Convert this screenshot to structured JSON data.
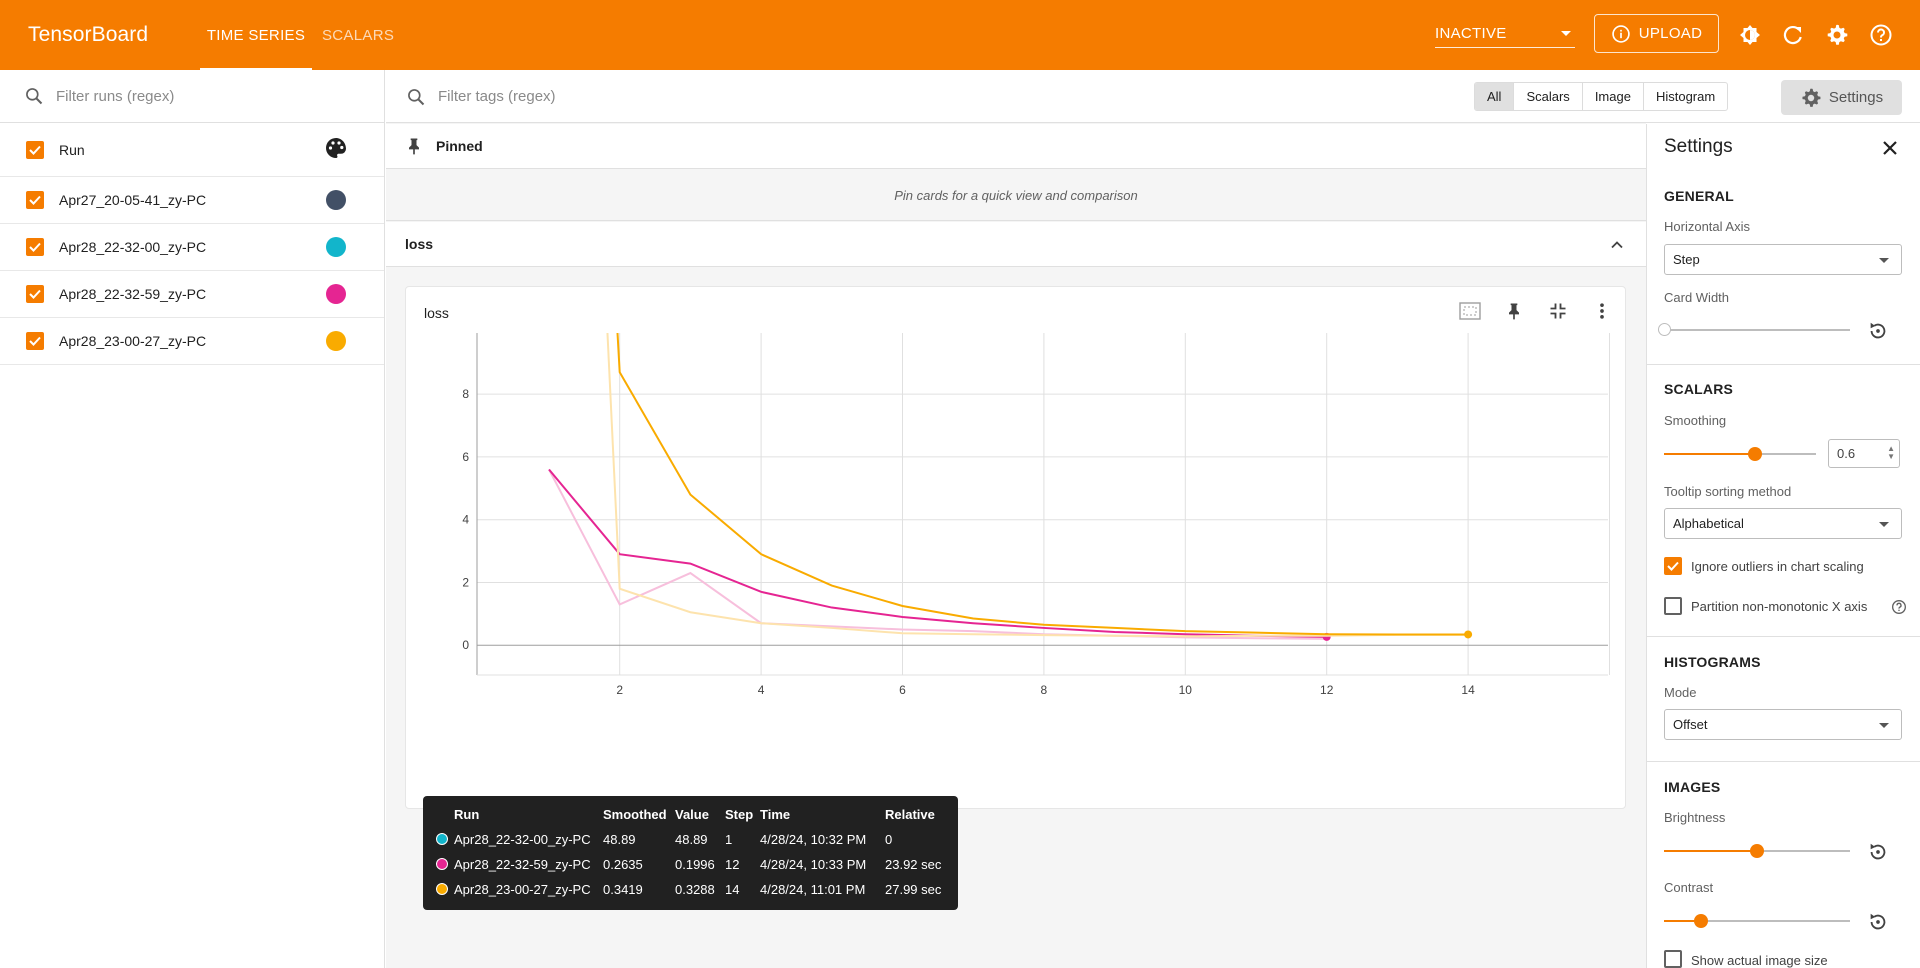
{
  "header": {
    "brand": "TensorBoard",
    "tabs": [
      {
        "label": "TIME SERIES"
      },
      {
        "label": "SCALARS"
      }
    ],
    "status_select": "INACTIVE",
    "upload_label": "UPLOAD"
  },
  "runs_panel": {
    "filter_placeholder": "Filter runs (regex)",
    "header_label": "Run",
    "runs": [
      {
        "name": "Apr27_20-05-41_zy-PC",
        "color": "#425066"
      },
      {
        "name": "Apr28_22-32-00_zy-PC",
        "color": "#12b5cb"
      },
      {
        "name": "Apr28_22-32-59_zy-PC",
        "color": "#e52592"
      },
      {
        "name": "Apr28_23-00-27_zy-PC",
        "color": "#f9ab00"
      }
    ]
  },
  "toolbar": {
    "tags_placeholder": "Filter tags (regex)",
    "type_filters": [
      "All",
      "Scalars",
      "Image",
      "Histogram"
    ],
    "selected_filter": "All",
    "settings_label": "Settings"
  },
  "pinned": {
    "title": "Pinned",
    "empty_text": "Pin cards for a quick view and comparison"
  },
  "group": {
    "title": "loss"
  },
  "card": {
    "title": "loss"
  },
  "chart_data": {
    "type": "line",
    "title": "loss",
    "xlabel": "",
    "ylabel": "",
    "xlim": [
      0,
      16
    ],
    "ylim": [
      -1,
      10
    ],
    "x_ticks": [
      2,
      4,
      6,
      8,
      10,
      12,
      14
    ],
    "y_ticks": [
      0,
      2,
      4,
      6,
      8
    ],
    "grid": true,
    "smoothing": 0.6,
    "series": [
      {
        "name": "Apr28_22-32-59_zy-PC",
        "color": "#e52592",
        "x": [
          1,
          2,
          3,
          4,
          5,
          6,
          7,
          8,
          9,
          10,
          11,
          12
        ],
        "smoothed": [
          5.6,
          2.9,
          2.6,
          1.7,
          1.2,
          0.9,
          0.7,
          0.55,
          0.42,
          0.35,
          0.3,
          0.2635
        ],
        "raw": [
          5.6,
          1.3,
          2.3,
          0.7,
          0.6,
          0.5,
          0.45,
          0.35,
          0.3,
          0.25,
          0.22,
          0.1996
        ]
      },
      {
        "name": "Apr28_23-00-27_zy-PC",
        "color": "#f9ab00",
        "x": [
          1,
          2,
          3,
          4,
          5,
          6,
          7,
          8,
          9,
          10,
          11,
          12,
          13,
          14
        ],
        "smoothed": [
          48.89,
          8.7,
          4.8,
          2.9,
          1.9,
          1.25,
          0.85,
          0.65,
          0.55,
          0.45,
          0.4,
          0.35,
          0.34,
          0.3419
        ],
        "raw": [
          48.89,
          1.8,
          1.05,
          0.7,
          0.55,
          0.38,
          0.35,
          0.32,
          0.3,
          0.28,
          0.3,
          0.3,
          0.33,
          0.3288
        ]
      }
    ]
  },
  "tooltip": {
    "headers": [
      "Run",
      "Smoothed",
      "Value",
      "Step",
      "Time",
      "Relative"
    ],
    "rows": [
      {
        "color": "#12b5cb",
        "run": "Apr28_22-32-00_zy-PC",
        "smoothed": "48.89",
        "value": "48.89",
        "step": "1",
        "time": "4/28/24, 10:32 PM",
        "relative": "0"
      },
      {
        "color": "#e52592",
        "run": "Apr28_22-32-59_zy-PC",
        "smoothed": "0.2635",
        "value": "0.1996",
        "step": "12",
        "time": "4/28/24, 10:33 PM",
        "relative": "23.92 sec"
      },
      {
        "color": "#f9ab00",
        "run": "Apr28_23-00-27_zy-PC",
        "smoothed": "0.3419",
        "value": "0.3288",
        "step": "14",
        "time": "4/28/24, 11:01 PM",
        "relative": "27.99 sec"
      }
    ]
  },
  "settings": {
    "title": "Settings",
    "general": {
      "heading": "GENERAL",
      "horizontal_axis_label": "Horizontal Axis",
      "horizontal_axis_value": "Step",
      "card_width_label": "Card Width"
    },
    "scalars": {
      "heading": "SCALARS",
      "smoothing_label": "Smoothing",
      "smoothing_value": "0.6",
      "tooltip_sort_label": "Tooltip sorting method",
      "tooltip_sort_value": "Alphabetical",
      "ignore_outliers_label": "Ignore outliers in chart scaling",
      "partition_label": "Partition non-monotonic X axis"
    },
    "histograms": {
      "heading": "HISTOGRAMS",
      "mode_label": "Mode",
      "mode_value": "Offset"
    },
    "images": {
      "heading": "IMAGES",
      "brightness_label": "Brightness",
      "contrast_label": "Contrast",
      "actual_size_label": "Show actual image size"
    }
  }
}
